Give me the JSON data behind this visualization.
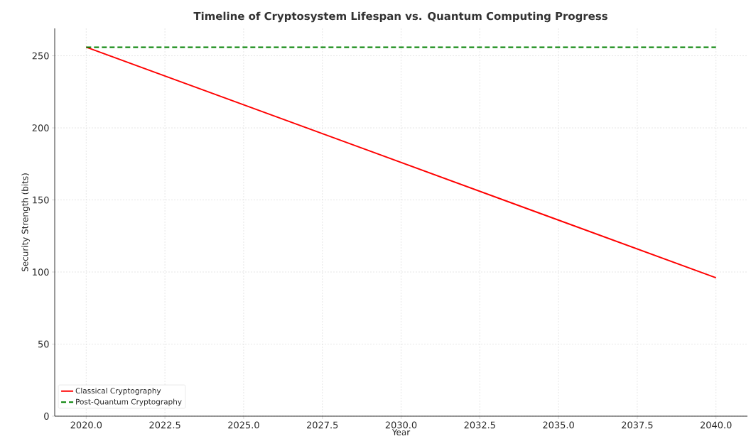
{
  "chart_data": {
    "type": "line",
    "title": "Timeline of Cryptosystem Lifespan vs. Quantum Computing Progress",
    "xlabel": "Year",
    "ylabel": "Security Strength (bits)",
    "x": [
      2020,
      2040
    ],
    "series": [
      {
        "name": "Classical Cryptography",
        "color": "#ff0000",
        "values": [
          256,
          96
        ],
        "line_style": "solid"
      },
      {
        "name": "Post-Quantum Cryptography",
        "color": "#008000",
        "values": [
          256,
          256
        ],
        "line_style": "dashed"
      }
    ],
    "xlim": [
      2019,
      2041
    ],
    "ylim": [
      0,
      269
    ],
    "xticks": [
      {
        "value": 2020,
        "label": "2020.0"
      },
      {
        "value": 2022.5,
        "label": "2022.5"
      },
      {
        "value": 2025,
        "label": "2025.0"
      },
      {
        "value": 2027.5,
        "label": "2027.5"
      },
      {
        "value": 2030,
        "label": "2030.0"
      },
      {
        "value": 2032.5,
        "label": "2032.5"
      },
      {
        "value": 2035,
        "label": "2035.0"
      },
      {
        "value": 2037.5,
        "label": "2037.5"
      },
      {
        "value": 2040,
        "label": "2040.0"
      }
    ],
    "yticks": [
      0,
      50,
      100,
      150,
      200,
      250
    ],
    "grid": true,
    "legend": "bottom left",
    "marker": "none"
  }
}
